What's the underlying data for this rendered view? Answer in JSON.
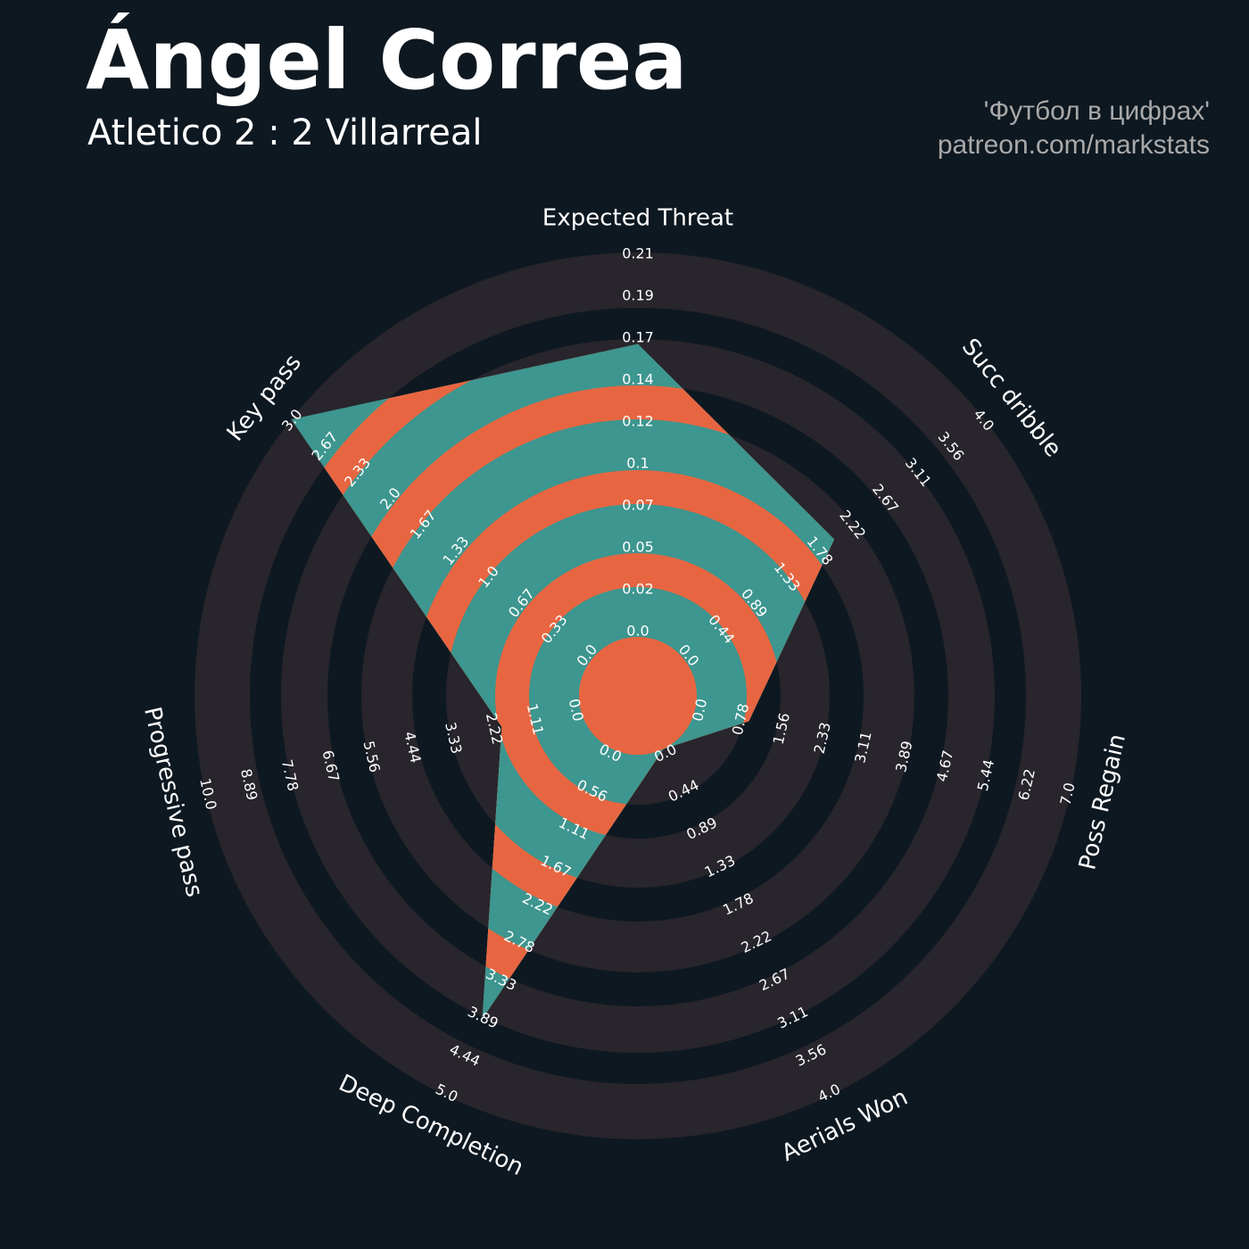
{
  "header": {
    "title": "Ángel Correa",
    "subtitle": "Atletico 2 : 2 Villarreal",
    "credit_line1": "'Футбол в цифрах'",
    "credit_line2": "patreon.com/markstats"
  },
  "colors": {
    "background": "#0e1821",
    "ring": "#28252c",
    "polygon_primary": "#3d968f",
    "polygon_secondary": "#e76641"
  },
  "chart_data": {
    "type": "radar",
    "params": [
      "Expected Threat",
      "Succ dribble",
      "Poss Regain",
      "Aerials Won",
      "Deep Completion",
      "Progressive pass",
      "Key pass"
    ],
    "values": [
      0.16,
      2.0,
      1.0,
      0.0,
      3.9,
      2.1,
      3.0
    ],
    "min": [
      0,
      0,
      0,
      0,
      0,
      0,
      0
    ],
    "max": [
      0.21,
      4.0,
      7.0,
      4.0,
      5.0,
      10.0,
      3.0
    ],
    "range_labels": [
      [
        "0.0",
        "0.02",
        "0.05",
        "0.07",
        "0.1",
        "0.12",
        "0.14",
        "0.17",
        "0.19",
        "0.21"
      ],
      [
        "0.0",
        "0.44",
        "0.89",
        "1.33",
        "1.78",
        "2.22",
        "2.67",
        "3.11",
        "3.56",
        "4.0"
      ],
      [
        "0.0",
        "0.78",
        "1.56",
        "2.33",
        "3.11",
        "3.89",
        "4.67",
        "5.44",
        "6.22",
        "7.0"
      ],
      [
        "0.0",
        "0.44",
        "0.89",
        "1.33",
        "1.78",
        "2.22",
        "2.67",
        "3.11",
        "3.56",
        "4.0"
      ],
      [
        "0.0",
        "0.56",
        "1.11",
        "1.67",
        "2.22",
        "2.78",
        "3.33",
        "3.89",
        "4.44",
        "5.0"
      ],
      [
        "0.0",
        "1.11",
        "2.22",
        "3.33",
        "4.44",
        "5.56",
        "6.67",
        "7.78",
        "8.89",
        "10.0"
      ],
      [
        "0.0",
        "0.33",
        "0.67",
        "1.0",
        "1.33",
        "1.67",
        "2.0",
        "2.33",
        "2.67",
        "3.0"
      ]
    ]
  }
}
